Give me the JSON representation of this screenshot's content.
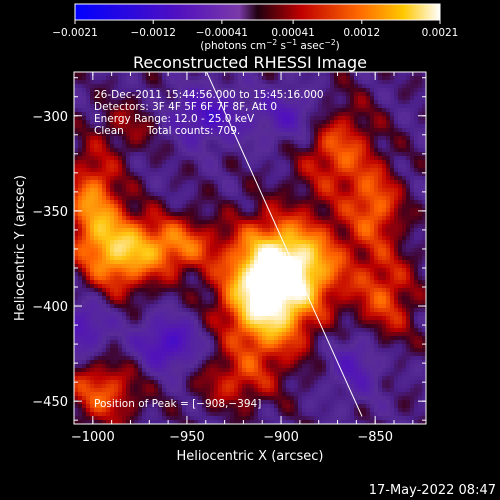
{
  "chart_data": {
    "type": "heatmap",
    "title": "Reconstructed RHESSI Image",
    "xlabel": "Heliocentric X (arcsec)",
    "ylabel": "Heliocentric Y (arcsec)",
    "xlim": [
      -1010,
      -823
    ],
    "ylim": [
      -462,
      -277
    ],
    "x_ticks": [
      -1000,
      -950,
      -900,
      -850
    ],
    "x_tick_labels": [
      "−1000",
      "−950",
      "−900",
      "−850"
    ],
    "y_ticks": [
      -300,
      -350,
      -400,
      -450
    ],
    "y_tick_labels": [
      "−300",
      "−350",
      "−400",
      "−450"
    ],
    "colorbar": {
      "range": [
        -0.0021,
        0.0021
      ],
      "ticks": [
        -0.0021,
        -0.0012,
        -0.00041,
        0.00041,
        0.0012,
        0.0021
      ],
      "tick_labels": [
        "−0.0021",
        "−0.0012",
        "−0.00041",
        "0.00041",
        "0.0012",
        "0.0021"
      ],
      "unit_label_main": "(photons cm",
      "unit_sup1": "−2",
      "unit_mid1": " s",
      "unit_sup2": "−1",
      "unit_mid2": " asec",
      "unit_sup3": "−2",
      "unit_end": ")"
    },
    "annotations": {
      "time_range": "26-Dec-2011 15:44:56.000 to 15:45:16.000",
      "detectors": "Detectors: 3F 4F 5F 6F 7F 8F, Att 0",
      "energy": "Energy Range: 12.0 - 25.0 keV",
      "clean_label": "Clean",
      "counts": "Total counts: 709.",
      "peak": "Position of Peak = [−908,−394]"
    },
    "peak": [
      -908,
      -394
    ],
    "limb_line": [
      [
        -940,
        -276
      ],
      [
        -857,
        -458
      ]
    ],
    "hotspots": [
      {
        "x": -908,
        "y": -394,
        "amp": 1.0,
        "sx": 16,
        "sy": 22
      },
      {
        "x": -890,
        "y": -378,
        "amp": 0.65,
        "sx": 18,
        "sy": 16
      },
      {
        "x": -985,
        "y": -372,
        "amp": 0.7,
        "sx": 14,
        "sy": 14
      },
      {
        "x": -1000,
        "y": -345,
        "amp": 0.55,
        "sx": 10,
        "sy": 18
      },
      {
        "x": -955,
        "y": -368,
        "amp": 0.5,
        "sx": 14,
        "sy": 10
      },
      {
        "x": -870,
        "y": -318,
        "amp": 0.45,
        "sx": 14,
        "sy": 18
      },
      {
        "x": -850,
        "y": -348,
        "amp": 0.45,
        "sx": 10,
        "sy": 14
      },
      {
        "x": -845,
        "y": -395,
        "amp": 0.4,
        "sx": 12,
        "sy": 18
      },
      {
        "x": -995,
        "y": -445,
        "amp": 0.45,
        "sx": 14,
        "sy": 12
      },
      {
        "x": -925,
        "y": -440,
        "amp": 0.3,
        "sx": 14,
        "sy": 10
      },
      {
        "x": -980,
        "y": -305,
        "amp": 0.2,
        "sx": 12,
        "sy": 10
      }
    ],
    "coldspots": [
      {
        "x": -940,
        "y": -300,
        "amp": 0.45,
        "sx": 14,
        "sy": 10
      },
      {
        "x": -960,
        "y": -420,
        "amp": 0.5,
        "sx": 12,
        "sy": 10
      },
      {
        "x": -895,
        "y": -300,
        "amp": 0.35,
        "sx": 14,
        "sy": 10
      },
      {
        "x": -1005,
        "y": -412,
        "amp": 0.4,
        "sx": 10,
        "sy": 10
      },
      {
        "x": -860,
        "y": -430,
        "amp": 0.35,
        "sx": 10,
        "sy": 12
      }
    ]
  },
  "footer": {
    "date": "17-May-2022 08:47"
  }
}
